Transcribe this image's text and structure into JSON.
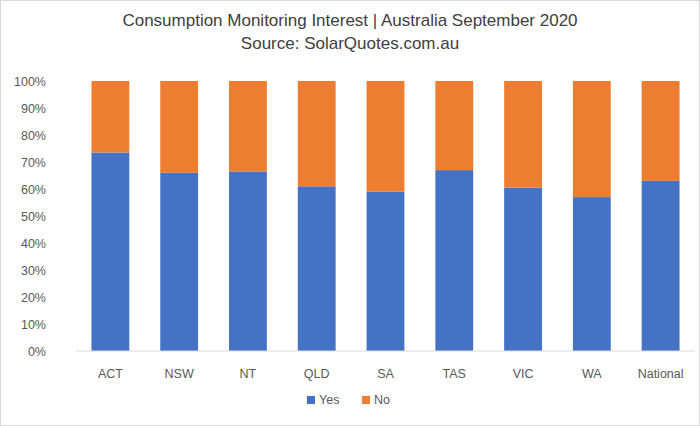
{
  "chart_data": {
    "type": "bar",
    "stacked": true,
    "title": "Consumption Monitoring Interest | Australia September 2020",
    "subtitle": "Source: SolarQuotes.com.au",
    "categories": [
      "ACT",
      "NSW",
      "NT",
      "QLD",
      "SA",
      "TAS",
      "VIC",
      "WA",
      "National"
    ],
    "series": [
      {
        "name": "Yes",
        "color": "#4472c4",
        "values": [
          73.5,
          66,
          66.5,
          61,
          59,
          67,
          60.5,
          57,
          63
        ]
      },
      {
        "name": "No",
        "color": "#ed7d31",
        "values": [
          26.5,
          34,
          33.5,
          39,
          41,
          33,
          39.5,
          43,
          37
        ]
      }
    ],
    "ylim": [
      0,
      100
    ],
    "yticks": [
      {
        "value": 0,
        "label": "0%"
      },
      {
        "value": 10,
        "label": "10%"
      },
      {
        "value": 20,
        "label": "20%"
      },
      {
        "value": 30,
        "label": "30%"
      },
      {
        "value": 40,
        "label": "40%"
      },
      {
        "value": 50,
        "label": "50%"
      },
      {
        "value": 60,
        "label": "60%"
      },
      {
        "value": 70,
        "label": "70%"
      },
      {
        "value": 80,
        "label": "80%"
      },
      {
        "value": 90,
        "label": "90%"
      },
      {
        "value": 100,
        "label": "100%"
      }
    ],
    "grid": false,
    "legend": "bottom"
  }
}
